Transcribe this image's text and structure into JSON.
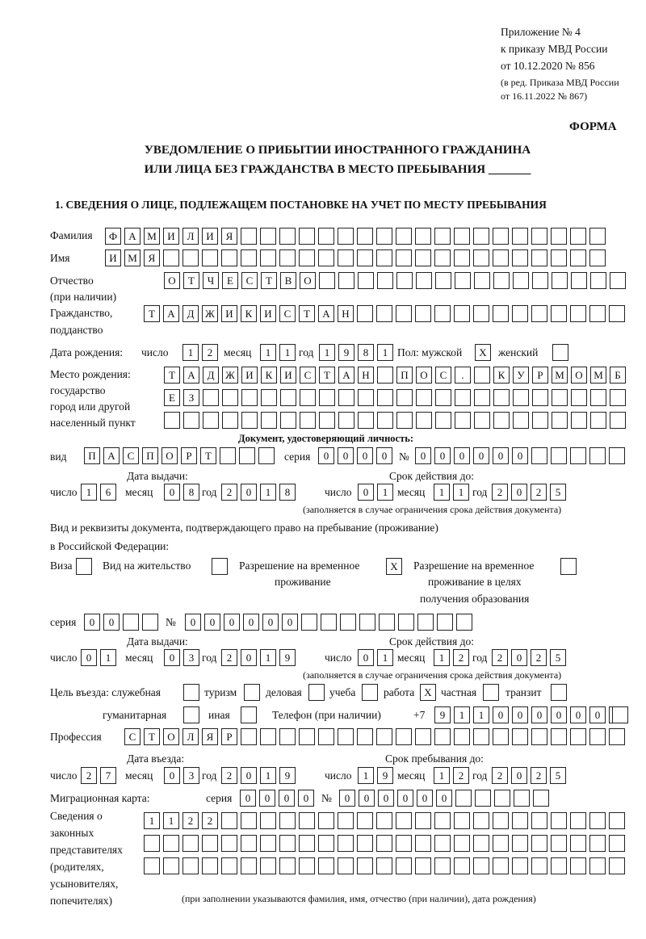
{
  "header": {
    "appendix": "Приложение № 4",
    "order": "к приказу МВД России",
    "order_date": "от 10.12.2020 № 856",
    "revision1": "(в ред. Приказа МВД России",
    "revision2": "от 16.11.2022 № 867)",
    "form_label": "ФОРМА",
    "title1": "УВЕДОМЛЕНИЕ О ПРИБЫТИИ ИНОСТРАННОГО ГРАЖДАНИНА",
    "title2": "ИЛИ ЛИЦА БЕЗ ГРАЖДАНСТВА В МЕСТО ПРЕБЫВАНИЯ _______"
  },
  "section1": {
    "heading": "1. СВЕДЕНИЯ О ЛИЦЕ, ПОДЛЕЖАЩЕМ ПОСТАНОВКЕ НА УЧЕТ ПО МЕСТУ ПРЕБЫВАНИЯ",
    "surname_label": "Фамилия",
    "surname": "ФАМИЛИЯ",
    "name_label": "Имя",
    "name": "ИМЯ",
    "patronymic_label": "Отчество",
    "patronymic_note": "(при наличии)",
    "patronymic": "ОТЧЕСТВО",
    "citizenship_label1": "Гражданство,",
    "citizenship_label2": "подданство",
    "citizenship": "ТАДЖИКИСТАН",
    "birth": {
      "label": "Дата рождения:",
      "day_label": "число",
      "day": "12",
      "month_label": "месяц",
      "month": "11",
      "year_label": "год",
      "year": "1981",
      "sex_label": "Пол: мужской",
      "male": "X",
      "female_label": "женский",
      "female": ""
    },
    "birthplace": {
      "label1": "Место рождения:",
      "label2": "государство",
      "label3": "город или другой",
      "label4": "населенный пункт",
      "line1": "ТАДЖИКИСТАН ПОС. КУРМОМБ",
      "line2": "ЕЗ",
      "line3": ""
    },
    "id_doc": {
      "heading": "Документ, удостоверяющий личность:",
      "kind_label": "вид",
      "kind": "ПАСПОРТ",
      "series_label": "серия",
      "series": "0000",
      "number_label": "№",
      "number": "000000",
      "issue_label": "Дата выдачи:",
      "valid_label": "Срок действия до:",
      "day_label": "число",
      "month_label": "месяц",
      "year_label": "год",
      "issue_day": "16",
      "issue_month": "08",
      "issue_year": "2018",
      "valid_day": "01",
      "valid_month": "11",
      "valid_year": "2025",
      "note": "(заполняется в случае ограничения срока действия документа)"
    },
    "stay_doc": {
      "intro1": "Вид и реквизиты документа, подтверждающего право на пребывание (проживание)",
      "intro2": "в Российской Федерации:",
      "visa_label": "Виза",
      "visa": "",
      "residence_label": "Вид на жительство",
      "residence": "",
      "trp_label1": "Разрешение на временное",
      "trp_label2": "проживание",
      "trp": "X",
      "trpe_label1": "Разрешение на временное",
      "trpe_label2": "проживание в целях",
      "trpe_label3": "получения образования",
      "trpe": "",
      "series_label": "серия",
      "series": "00",
      "number_label": "№",
      "number": "000000",
      "issue_label": "Дата выдачи:",
      "valid_label": "Срок действия до:",
      "day_label": "число",
      "month_label": "месяц",
      "year_label": "год",
      "issue_day": "01",
      "issue_month": "03",
      "issue_year": "2019",
      "valid_day": "01",
      "valid_month": "12",
      "valid_year": "2025",
      "note": "(заполняется в случае ограничения срока действия документа)"
    },
    "purpose": {
      "label": "Цель въезда: служебная",
      "official": "",
      "tourism_label": "туризм",
      "tourism": "",
      "business_label": "деловая",
      "business": "",
      "study_label": "учеба",
      "study": "",
      "work_label": "работа",
      "work": "X",
      "private_label": "частная",
      "private": "",
      "transit_label": "транзит",
      "transit": "",
      "humanitarian_label": "гуманитарная",
      "humanitarian": "",
      "other_label": "иная",
      "other": ""
    },
    "phone_label": "Телефон (при наличии)",
    "phone_prefix": "+7",
    "phone": "9110000000",
    "profession_label": "Профессия",
    "profession": "СТОЛЯР",
    "entry": {
      "entry_label": "Дата въезда:",
      "stay_label": "Срок пребывания до:",
      "day_label": "число",
      "month_label": "месяц",
      "year_label": "год",
      "entry_day": "27",
      "entry_month": "03",
      "entry_year": "2019",
      "stay_day": "19",
      "stay_month": "12",
      "stay_year": "2025"
    },
    "migration_card": {
      "label": "Миграционная карта:",
      "series_label": "серия",
      "series": "0000",
      "number_label": "№",
      "number": "000000"
    },
    "representatives": {
      "label1": "Сведения о",
      "label2": "законных",
      "label3": "представителях",
      "label4": "(родителях,",
      "label5": "усыновителях,",
      "label6": "попечителях)",
      "line1": "1122",
      "line2": "",
      "line3": "",
      "note": "(при заполнении указываются фамилия, имя, отчество (при наличии), дата рождения)"
    }
  }
}
